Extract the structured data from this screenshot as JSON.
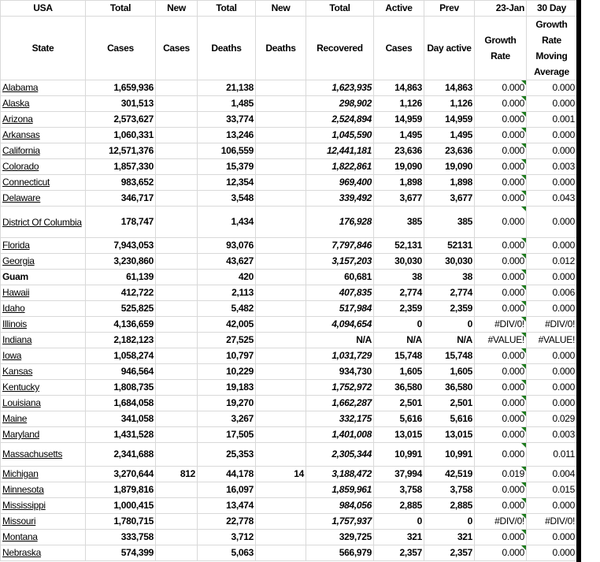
{
  "header_row1": [
    "USA",
    "Total",
    "New",
    "Total",
    "New",
    "Total",
    "Active",
    "Prev",
    "23-Jan",
    "30 Day"
  ],
  "header_row2": [
    "State",
    "Cases",
    "Cases",
    "Deaths",
    "Deaths",
    "Recovered",
    "Cases",
    "Day active",
    "Growth Rate",
    "Growth Rate Moving Average"
  ],
  "colors": {
    "grid": "#d9d9d9",
    "comment_marker": "#1e7b1e"
  },
  "rows": [
    {
      "state": "Alabama",
      "link": true,
      "total_cases": "1,659,936",
      "new_cases": "",
      "total_deaths": "21,138",
      "new_deaths": "",
      "recovered": "1,623,935",
      "rec_italic": true,
      "active": "14,863",
      "prev": "14,863",
      "growth": "0.000",
      "avg": "0.000"
    },
    {
      "state": "Alaska",
      "link": true,
      "total_cases": "301,513",
      "new_cases": "",
      "total_deaths": "1,485",
      "new_deaths": "",
      "recovered": "298,902",
      "rec_italic": true,
      "active": "1,126",
      "prev": "1,126",
      "growth": "0.000",
      "avg": "0.000"
    },
    {
      "state": "Arizona",
      "link": true,
      "total_cases": "2,573,627",
      "new_cases": "",
      "total_deaths": "33,774",
      "new_deaths": "",
      "recovered": "2,524,894",
      "rec_italic": true,
      "active": "14,959",
      "prev": "14,959",
      "growth": "0.000",
      "avg": "0.001"
    },
    {
      "state": "Arkansas",
      "link": true,
      "total_cases": "1,060,331",
      "new_cases": "",
      "total_deaths": "13,246",
      "new_deaths": "",
      "recovered": "1,045,590",
      "rec_italic": true,
      "active": "1,495",
      "prev": "1,495",
      "growth": "0.000",
      "avg": "0.000"
    },
    {
      "state": "California",
      "link": true,
      "total_cases": "12,571,376",
      "new_cases": "",
      "total_deaths": "106,559",
      "new_deaths": "",
      "recovered": "12,441,181",
      "rec_italic": true,
      "active": "23,636",
      "prev": "23,636",
      "growth": "0.000",
      "avg": "0.000"
    },
    {
      "state": "Colorado",
      "link": true,
      "total_cases": "1,857,330",
      "new_cases": "",
      "total_deaths": "15,379",
      "new_deaths": "",
      "recovered": "1,822,861",
      "rec_italic": true,
      "active": "19,090",
      "prev": "19,090",
      "growth": "0.000",
      "avg": "0.003"
    },
    {
      "state": "Connecticut",
      "link": true,
      "total_cases": "983,652",
      "new_cases": "",
      "total_deaths": "12,354",
      "new_deaths": "",
      "recovered": "969,400",
      "rec_italic": true,
      "active": "1,898",
      "prev": "1,898",
      "growth": "0.000",
      "avg": "0.000"
    },
    {
      "state": "Delaware",
      "link": true,
      "total_cases": "346,717",
      "new_cases": "",
      "total_deaths": "3,548",
      "new_deaths": "",
      "recovered": "339,492",
      "rec_italic": true,
      "active": "3,677",
      "prev": "3,677",
      "growth": "0.000",
      "avg": "0.043"
    },
    {
      "state": "District Of Columbia",
      "link": true,
      "tall": 40,
      "total_cases": "178,747",
      "new_cases": "",
      "total_deaths": "1,434",
      "new_deaths": "",
      "recovered": "176,928",
      "rec_italic": true,
      "active": "385",
      "prev": "385",
      "growth": "0.000",
      "avg": "0.000"
    },
    {
      "state": "Florida",
      "link": true,
      "total_cases": "7,943,053",
      "new_cases": "",
      "total_deaths": "93,076",
      "new_deaths": "",
      "recovered": "7,797,846",
      "rec_italic": true,
      "active": "52,131",
      "prev": "52131",
      "growth": "0.000",
      "avg": "0.000"
    },
    {
      "state": "Georgia",
      "link": true,
      "total_cases": "3,230,860",
      "new_cases": "",
      "total_deaths": "43,627",
      "new_deaths": "",
      "recovered": "3,157,203",
      "rec_italic": true,
      "active": "30,030",
      "prev": "30,030",
      "growth": "0.000",
      "avg": "0.012"
    },
    {
      "state": "Guam",
      "link": false,
      "total_cases": "61,139",
      "new_cases": "",
      "total_deaths": "420",
      "new_deaths": "",
      "recovered": "60,681",
      "rec_italic": false,
      "active": "38",
      "prev": "38",
      "growth": "0.000",
      "avg": "0.000"
    },
    {
      "state": "Hawaii",
      "link": true,
      "total_cases": "412,722",
      "new_cases": "",
      "total_deaths": "2,113",
      "new_deaths": "",
      "recovered": "407,835",
      "rec_italic": true,
      "active": "2,774",
      "prev": "2,774",
      "growth": "0.000",
      "avg": "0.006"
    },
    {
      "state": "Idaho",
      "link": true,
      "total_cases": "525,825",
      "new_cases": "",
      "total_deaths": "5,482",
      "new_deaths": "",
      "recovered": "517,984",
      "rec_italic": true,
      "active": "2,359",
      "prev": "2,359",
      "growth": "0.000",
      "avg": "0.000"
    },
    {
      "state": "Illinois",
      "link": true,
      "total_cases": "4,136,659",
      "new_cases": "",
      "total_deaths": "42,005",
      "new_deaths": "",
      "recovered": "4,094,654",
      "rec_italic": true,
      "active": "0",
      "prev": "0",
      "growth": "#DIV/0!",
      "avg": "#DIV/0!"
    },
    {
      "state": "Indiana",
      "link": true,
      "total_cases": "2,182,123",
      "new_cases": "",
      "total_deaths": "27,525",
      "new_deaths": "",
      "recovered": "N/A",
      "rec_italic": false,
      "active": "N/A",
      "prev": "N/A",
      "growth": "#VALUE!",
      "avg": "#VALUE!"
    },
    {
      "state": "Iowa",
      "link": true,
      "total_cases": "1,058,274",
      "new_cases": "",
      "total_deaths": "10,797",
      "new_deaths": "",
      "recovered": "1,031,729",
      "rec_italic": true,
      "active": "15,748",
      "prev": "15,748",
      "growth": "0.000",
      "avg": "0.000"
    },
    {
      "state": "Kansas",
      "link": true,
      "total_cases": "946,564",
      "new_cases": "",
      "total_deaths": "10,229",
      "new_deaths": "",
      "recovered": "934,730",
      "rec_italic": false,
      "active": "1,605",
      "prev": "1,605",
      "growth": "0.000",
      "avg": "0.000"
    },
    {
      "state": "Kentucky",
      "link": true,
      "total_cases": "1,808,735",
      "new_cases": "",
      "total_deaths": "19,183",
      "new_deaths": "",
      "recovered": "1,752,972",
      "rec_italic": true,
      "active": "36,580",
      "prev": "36,580",
      "growth": "0.000",
      "avg": "0.000"
    },
    {
      "state": "Louisiana",
      "link": true,
      "total_cases": "1,684,058",
      "new_cases": "",
      "total_deaths": "19,270",
      "new_deaths": "",
      "recovered": "1,662,287",
      "rec_italic": true,
      "active": "2,501",
      "prev": "2,501",
      "growth": "0.000",
      "avg": "0.000"
    },
    {
      "state": "Maine",
      "link": true,
      "total_cases": "341,058",
      "new_cases": "",
      "total_deaths": "3,267",
      "new_deaths": "",
      "recovered": "332,175",
      "rec_italic": true,
      "active": "5,616",
      "prev": "5,616",
      "growth": "0.000",
      "avg": "0.029"
    },
    {
      "state": "Maryland",
      "link": true,
      "total_cases": "1,431,528",
      "new_cases": "",
      "total_deaths": "17,505",
      "new_deaths": "",
      "recovered": "1,401,008",
      "rec_italic": true,
      "active": "13,015",
      "prev": "13,015",
      "growth": "0.000",
      "avg": "0.003"
    },
    {
      "state": "Massachusetts",
      "link": true,
      "tall": 30,
      "total_cases": "2,341,688",
      "new_cases": "",
      "total_deaths": "25,353",
      "new_deaths": "",
      "recovered": "2,305,344",
      "rec_italic": true,
      "active": "10,991",
      "prev": "10,991",
      "growth": "0.000",
      "avg": "0.011"
    },
    {
      "state": "Michigan",
      "link": true,
      "total_cases": "3,270,644",
      "new_cases": "812",
      "total_deaths": "44,178",
      "new_deaths": "14",
      "recovered": "3,188,472",
      "rec_italic": true,
      "active": "37,994",
      "prev": "42,519",
      "growth": "0.019",
      "avg": "0.004"
    },
    {
      "state": "Minnesota",
      "link": true,
      "total_cases": "1,879,816",
      "new_cases": "",
      "total_deaths": "16,097",
      "new_deaths": "",
      "recovered": "1,859,961",
      "rec_italic": true,
      "active": "3,758",
      "prev": "3,758",
      "growth": "0.000",
      "avg": "0.015"
    },
    {
      "state": "Mississippi",
      "link": true,
      "total_cases": "1,000,415",
      "new_cases": "",
      "total_deaths": "13,474",
      "new_deaths": "",
      "recovered": "984,056",
      "rec_italic": true,
      "active": "2,885",
      "prev": "2,885",
      "growth": "0.000",
      "avg": "0.000"
    },
    {
      "state": "Missouri",
      "link": true,
      "total_cases": "1,780,715",
      "new_cases": "",
      "total_deaths": "22,778",
      "new_deaths": "",
      "recovered": "1,757,937",
      "rec_italic": true,
      "active": "0",
      "prev": "0",
      "growth": "#DIV/0!",
      "avg": "#DIV/0!"
    },
    {
      "state": "Montana",
      "link": true,
      "total_cases": "333,758",
      "new_cases": "",
      "total_deaths": "3,712",
      "new_deaths": "",
      "recovered": "329,725",
      "rec_italic": false,
      "active": "321",
      "prev": "321",
      "growth": "0.000",
      "avg": "0.000"
    },
    {
      "state": "Nebraska",
      "link": true,
      "total_cases": "574,399",
      "new_cases": "",
      "total_deaths": "5,063",
      "new_deaths": "",
      "recovered": "566,979",
      "rec_italic": false,
      "active": "2,357",
      "prev": "2,357",
      "growth": "0.000",
      "avg": "0.000"
    }
  ]
}
